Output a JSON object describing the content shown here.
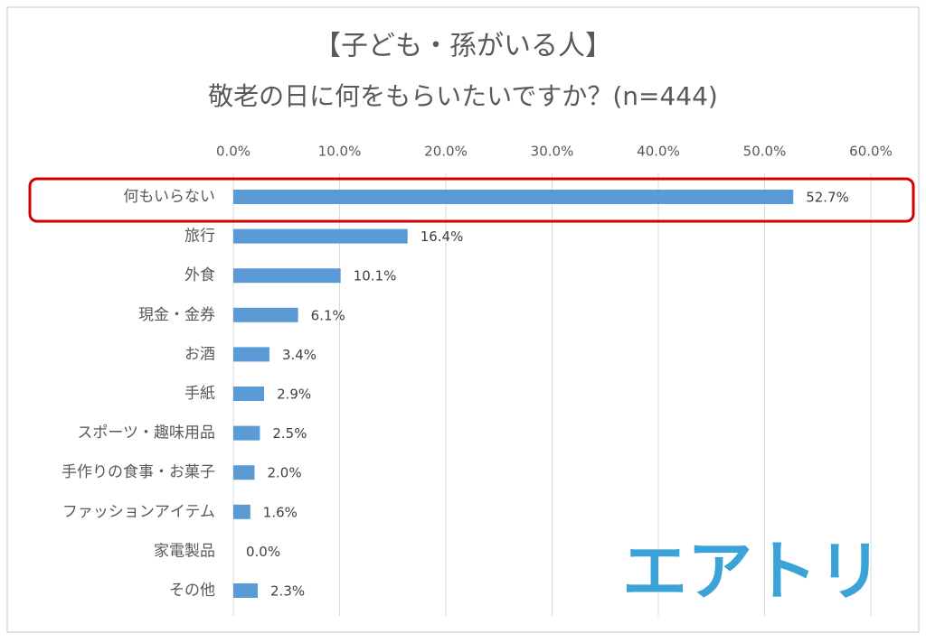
{
  "chart_data": {
    "type": "bar",
    "orientation": "horizontal",
    "title": "【子ども・孫がいる人】",
    "subtitle": "敬老の日に何をもらいたいですか？(n=444)",
    "categories": [
      "何もいらない",
      "旅行",
      "外食",
      "現金・金券",
      "お酒",
      "手紙",
      "スポーツ・趣味用品",
      "手作りの食事・お菓子",
      "ファッションアイテム",
      "家電製品",
      "その他"
    ],
    "values": [
      52.7,
      16.4,
      10.1,
      6.1,
      3.4,
      2.9,
      2.5,
      2.0,
      1.6,
      0.0,
      2.3
    ],
    "value_labels": [
      "52.7%",
      "16.4%",
      "10.1%",
      "6.1%",
      "3.4%",
      "2.9%",
      "2.5%",
      "2.0%",
      "1.6%",
      "0.0%",
      "2.3%"
    ],
    "color": "#5b9bd5",
    "xlim": [
      0,
      60
    ],
    "xticks": [
      {
        "value": 0,
        "label": "0.0%"
      },
      {
        "value": 10,
        "label": "10.0%"
      },
      {
        "value": 20,
        "label": "20.0%"
      },
      {
        "value": 30,
        "label": "30.0%"
      },
      {
        "value": 40,
        "label": "40.0%"
      },
      {
        "value": 50,
        "label": "50.0%"
      },
      {
        "value": 60,
        "label": "60.0%"
      }
    ],
    "grid": true,
    "annotations": [
      "エアトリ"
    ]
  }
}
